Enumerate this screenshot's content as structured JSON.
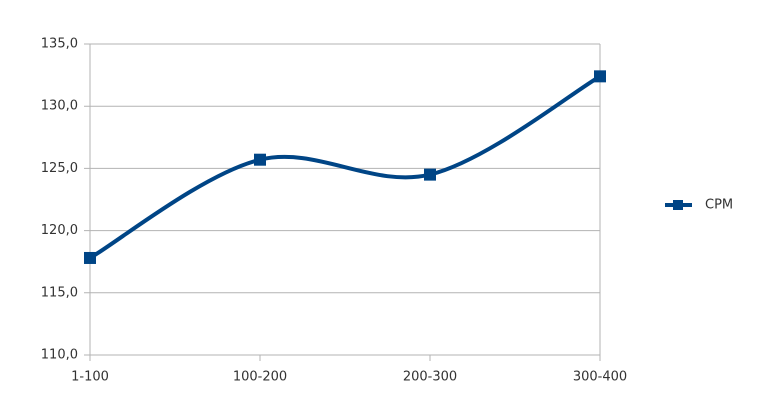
{
  "chart_data": {
    "type": "line",
    "categories": [
      "1-100",
      "100-200",
      "200-300",
      "300-400"
    ],
    "series": [
      {
        "name": "CPM",
        "color": "#004586",
        "values": [
          117.8,
          125.7,
          124.5,
          132.4
        ]
      }
    ],
    "ylim": [
      110,
      135
    ],
    "yticks": [
      {
        "value": 110,
        "label": "110,0"
      },
      {
        "value": 115,
        "label": "115,0"
      },
      {
        "value": 120,
        "label": "120,0"
      },
      {
        "value": 125,
        "label": "125,0"
      },
      {
        "value": 130,
        "label": "130,0"
      },
      {
        "value": 135,
        "label": "135,0"
      }
    ],
    "grid": true,
    "smooth": true,
    "legend": "right"
  }
}
